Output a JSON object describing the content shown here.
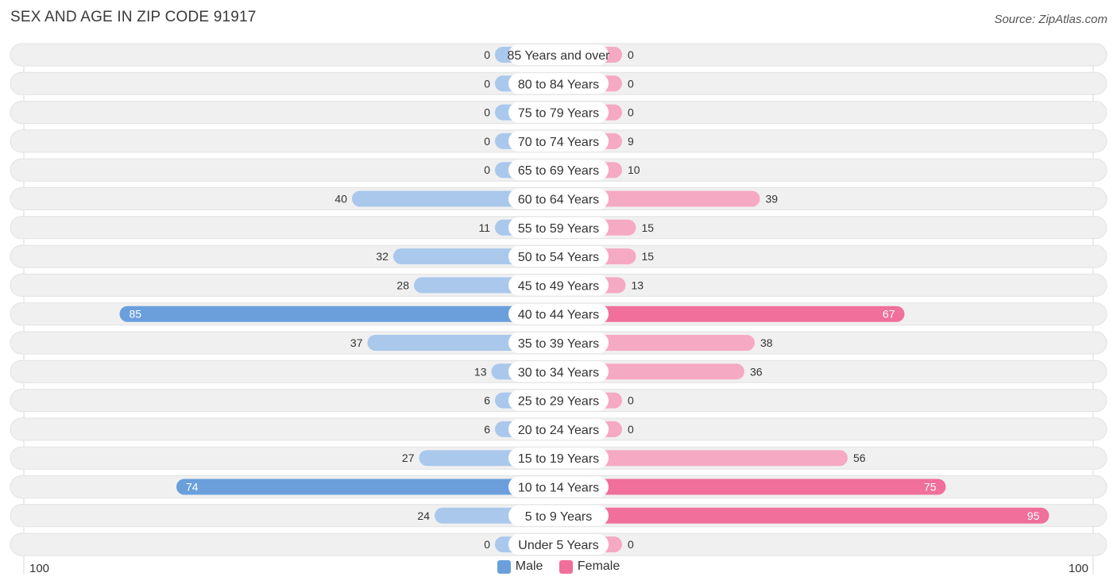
{
  "title": "SEX AND AGE IN ZIP CODE 91917",
  "source": "Source: ZipAtlas.com",
  "colors": {
    "male": "#6a9fdc",
    "male_light": "#a9c8ec",
    "female": "#f06f9b",
    "female_light": "#f6a9c3",
    "row_bg": "#f0f0f0",
    "label_bg": "#ffffff"
  },
  "legend": {
    "male": "Male",
    "female": "Female"
  },
  "axis": {
    "left_label": "100",
    "right_label": "100"
  },
  "chart_data": {
    "type": "bar",
    "orientation": "horizontal-diverging",
    "categories": [
      "85 Years and over",
      "80 to 84 Years",
      "75 to 79 Years",
      "70 to 74 Years",
      "65 to 69 Years",
      "60 to 64 Years",
      "55 to 59 Years",
      "50 to 54 Years",
      "45 to 49 Years",
      "40 to 44 Years",
      "35 to 39 Years",
      "30 to 34 Years",
      "25 to 29 Years",
      "20 to 24 Years",
      "15 to 19 Years",
      "10 to 14 Years",
      "5 to 9 Years",
      "Under 5 Years"
    ],
    "series": [
      {
        "name": "Male",
        "values": [
          0,
          0,
          0,
          0,
          0,
          40,
          11,
          32,
          28,
          85,
          37,
          13,
          6,
          6,
          27,
          74,
          24,
          0
        ]
      },
      {
        "name": "Female",
        "values": [
          0,
          0,
          0,
          9,
          10,
          39,
          15,
          15,
          13,
          67,
          38,
          36,
          0,
          0,
          56,
          75,
          95,
          0
        ]
      }
    ],
    "xlim": [
      -100,
      100
    ],
    "legend_position": "bottom-center"
  }
}
